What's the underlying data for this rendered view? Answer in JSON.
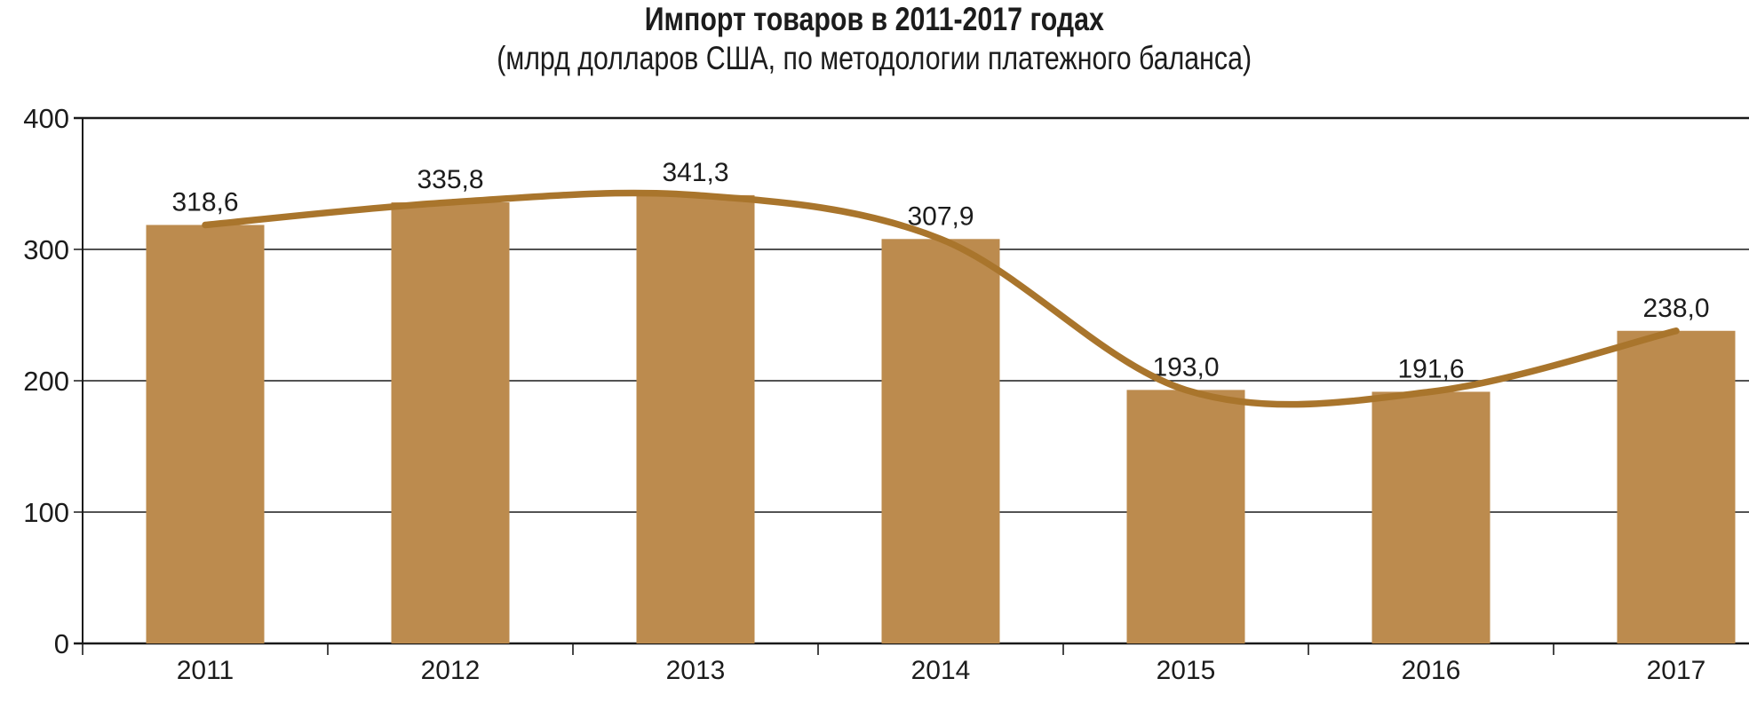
{
  "chart_data": {
    "type": "bar",
    "title": "Импорт товаров в 2011-2017 годах",
    "subtitle": "(млрд долларов США, по методологии платежного баланса)",
    "categories": [
      "2011",
      "2012",
      "2013",
      "2014",
      "2015",
      "2016",
      "2017"
    ],
    "values": [
      318.6,
      335.8,
      341.3,
      307.9,
      193.0,
      191.6,
      238.0
    ],
    "value_labels": [
      "318,6",
      "335,8",
      "341,3",
      "307,9",
      "193,0",
      "191,6",
      "238,0"
    ],
    "series": [
      {
        "name": "imports-bars",
        "type": "bar",
        "values": [
          318.6,
          335.8,
          341.3,
          307.9,
          193.0,
          191.6,
          238.0
        ]
      },
      {
        "name": "imports-trend",
        "type": "smoothed-line",
        "values": [
          318.6,
          335.8,
          341.3,
          307.9,
          193.0,
          191.6,
          238.0
        ]
      }
    ],
    "xlabel": "",
    "ylabel": "",
    "ylim": [
      0,
      400
    ],
    "y_ticks": [
      0,
      100,
      200,
      300,
      400
    ],
    "y_tick_labels": [
      "0",
      "100",
      "200",
      "300",
      "400"
    ],
    "grid": true,
    "legend_position": "none",
    "colors": {
      "bar": "#bc8b4e",
      "line": "#a9752c",
      "text": "#1c1c1c",
      "grid": "#1a1a1a",
      "background": "#ffffff"
    }
  }
}
